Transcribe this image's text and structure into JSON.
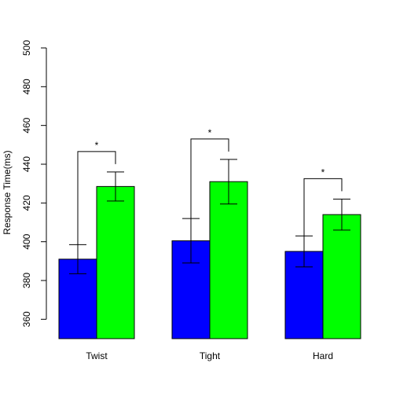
{
  "chart_data": {
    "type": "bar",
    "title": "",
    "xlabel": "",
    "ylabel": "Response Time(ms)",
    "ylim": [
      350,
      500
    ],
    "yticks": [
      360,
      380,
      400,
      420,
      440,
      460,
      480,
      500
    ],
    "categories": [
      "Twist",
      "Tight",
      "Hard"
    ],
    "series": [
      {
        "color": "#0000ff",
        "values": [
          391,
          400.5,
          395
        ],
        "error": [
          7.5,
          11.5,
          8
        ]
      },
      {
        "color": "#00ff00",
        "values": [
          428.5,
          431,
          414
        ],
        "error": [
          7.5,
          11.5,
          8
        ]
      }
    ],
    "significance": [
      {
        "category": "Twist",
        "label": "*"
      },
      {
        "category": "Tight",
        "label": "*"
      },
      {
        "category": "Hard",
        "label": "*"
      }
    ],
    "grid": false,
    "legend": "none"
  }
}
